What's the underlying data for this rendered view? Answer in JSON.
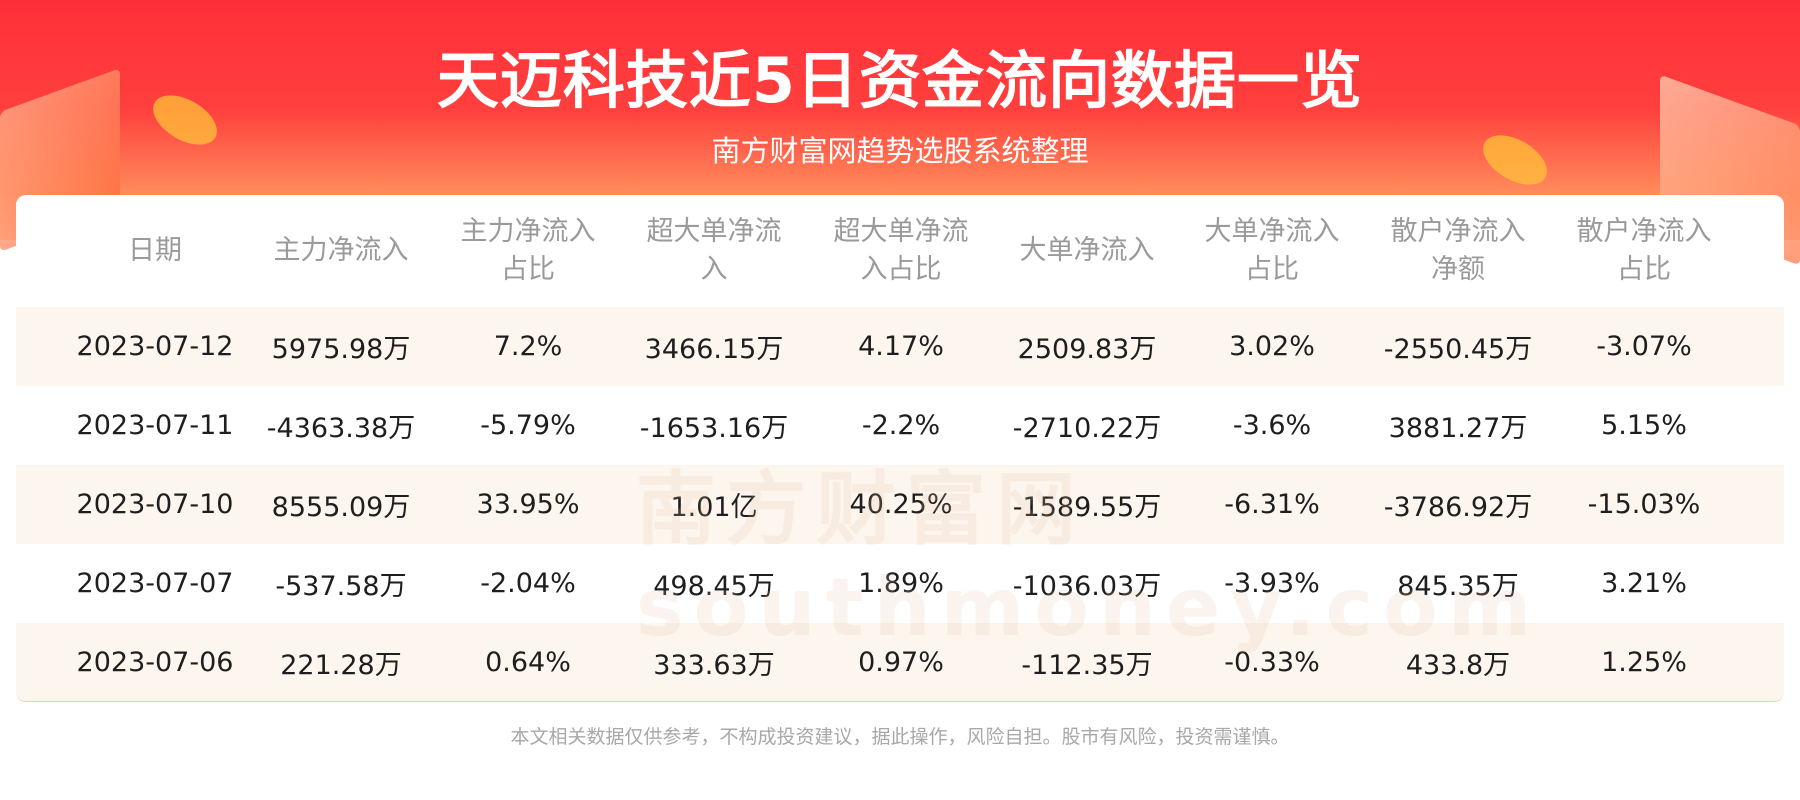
{
  "header": {
    "title": "天迈科技近5日资金流向数据一览",
    "subtitle": "南方财富网趋势选股系统整理"
  },
  "watermark": "南方财富网 southmoney.com",
  "table": {
    "columns": [
      "日期",
      "主力净流入",
      "主力净流入占比",
      "超大单净流入",
      "超大单净流入占比",
      "大单净流入",
      "大单净流入占比",
      "散户净流入净额",
      "散户净流入占比"
    ],
    "rows": [
      [
        "2023-07-12",
        "5975.98万",
        "7.2%",
        "3466.15万",
        "4.17%",
        "2509.83万",
        "3.02%",
        "-2550.45万",
        "-3.07%"
      ],
      [
        "2023-07-11",
        "-4363.38万",
        "-5.79%",
        "-1653.16万",
        "-2.2%",
        "-2710.22万",
        "-3.6%",
        "3881.27万",
        "5.15%"
      ],
      [
        "2023-07-10",
        "8555.09万",
        "33.95%",
        "1.01亿",
        "40.25%",
        "-1589.55万",
        "-6.31%",
        "-3786.92万",
        "-15.03%"
      ],
      [
        "2023-07-07",
        "-537.58万",
        "-2.04%",
        "498.45万",
        "1.89%",
        "-1036.03万",
        "-3.93%",
        "845.35万",
        "3.21%"
      ],
      [
        "2023-07-06",
        "221.28万",
        "0.64%",
        "333.63万",
        "0.97%",
        "-112.35万",
        "-0.33%",
        "433.8万",
        "1.25%"
      ]
    ]
  },
  "footer": "本文相关数据仅供参考，不构成投资建议，据此操作，风险自担。股市有风险，投资需谨慎。",
  "colors": {
    "brand_red": "#ff2f3a",
    "row_alt": "#fdf6ee",
    "header_text": "#9a9a9a"
  }
}
